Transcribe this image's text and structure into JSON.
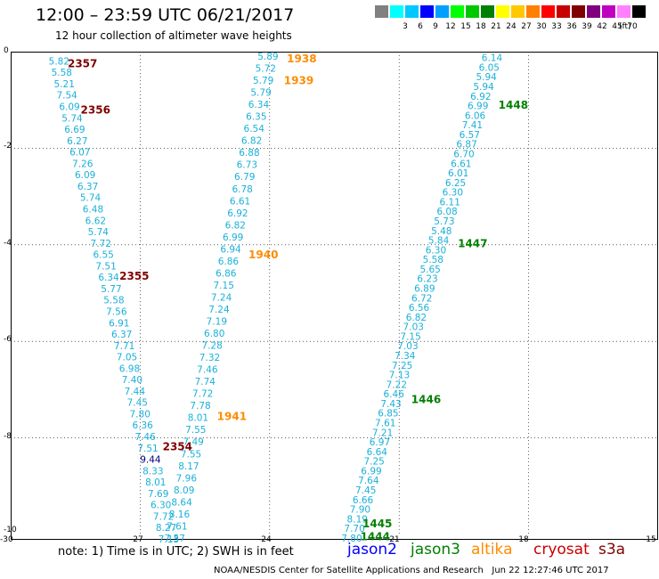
{
  "header": {
    "title": "12:00 – 23:59 UTC 06/21/2017",
    "subtitle": "12 hour collection of altimeter wave heights"
  },
  "scale": {
    "unit": "(ft)",
    "bins": [
      {
        "label": "",
        "color": "#808080"
      },
      {
        "label": "3",
        "color": "#00ffff"
      },
      {
        "label": "6",
        "color": "#00c8ff"
      },
      {
        "label": "9",
        "color": "#0000ff"
      },
      {
        "label": "12",
        "color": "#00a0ff"
      },
      {
        "label": "15",
        "color": "#00ff00"
      },
      {
        "label": "18",
        "color": "#00c800"
      },
      {
        "label": "21",
        "color": "#008000"
      },
      {
        "label": "24",
        "color": "#ffff00"
      },
      {
        "label": "27",
        "color": "#ffc800"
      },
      {
        "label": "30",
        "color": "#ff8000"
      },
      {
        "label": "33",
        "color": "#ff0000"
      },
      {
        "label": "36",
        "color": "#c80000"
      },
      {
        "label": "39",
        "color": "#800000"
      },
      {
        "label": "42",
        "color": "#800080"
      },
      {
        "label": "45",
        "color": "#c000c0"
      },
      {
        "label": "70",
        "color": "#ff80ff"
      },
      {
        "label": "",
        "color": "#000000"
      }
    ]
  },
  "axes": {
    "x_ticks": [
      "-30",
      "-27",
      "-24",
      "-21",
      "-18",
      "-15"
    ],
    "y_ticks": [
      "0",
      "-2",
      "-4",
      "-6",
      "-8",
      "-10"
    ],
    "lon_range": [
      -30,
      -15
    ],
    "lat_range": [
      -10,
      0
    ]
  },
  "note": "note: 1) Time is in UTC; 2) SWH is in feet",
  "legend": [
    {
      "label": "jason2",
      "color": "#0000ff"
    },
    {
      "label": "jason3",
      "color": "#008000"
    },
    {
      "label": "altika",
      "color": "#ff8c00"
    },
    {
      "label": "cryosat",
      "color": "#c80000"
    },
    {
      "label": "s3a",
      "color": "#800000"
    }
  ],
  "footer": "NOAA/NESDIS Center for Satellite Applications and Research   Jun 22 12:27:46 UTC 2017",
  "map_data": {
    "tracks": [
      {
        "satellite": "s3a",
        "start": [
          -29.12,
          -0.1
        ],
        "end": [
          -26.58,
          -10.0
        ],
        "values": [
          "5.82",
          "5.58",
          "5.21",
          "7.54",
          "6.09",
          "5.74",
          "6.69",
          "6.27",
          "6.07",
          "7.26",
          "6.09",
          "6.37",
          "5.74",
          "6.48",
          "6.62",
          "5.74",
          "7.72",
          "6.55",
          "7.51",
          "6.34",
          "5.77",
          "5.58",
          "7.56",
          "6.91",
          "6.37",
          "7.71",
          "7.05",
          "6.98",
          "7.40",
          "7.44",
          "7.45",
          "7.80",
          "6.36",
          "7.46",
          "7.51",
          "9.44",
          "8.33",
          "8.01",
          "7.69",
          "6.30",
          "7.72",
          "8.27",
          "7.13"
        ],
        "value_colors": {
          "35": "#000080"
        },
        "times": [
          {
            "label": "2357",
            "lon": -28.68,
            "lat": -0.12
          },
          {
            "label": "2356",
            "lon": -28.38,
            "lat": -1.08
          },
          {
            "label": "2355",
            "lon": -27.48,
            "lat": -4.52
          },
          {
            "label": "2354",
            "lon": -26.48,
            "lat": -8.05
          }
        ]
      },
      {
        "satellite": "altika",
        "start": [
          -24.28,
          0.0
        ],
        "end": [
          -26.44,
          -9.98
        ],
        "values": [
          "5.89",
          "5.72",
          "5.79",
          "5.79",
          "6.34",
          "6.35",
          "6.54",
          "6.82",
          "6.88",
          "6.73",
          "6.79",
          "6.78",
          "6.61",
          "6.92",
          "6.82",
          "6.99",
          "6.94",
          "6.86",
          "6.86",
          "7.15",
          "7.24",
          "7.24",
          "7.19",
          "6.80",
          "7.28",
          "7.32",
          "7.46",
          "7.74",
          "7.72",
          "7.78",
          "8.01",
          "7.55",
          "7.49",
          "7.55",
          "8.17",
          "7.96",
          "8.09",
          "8.64",
          "8.16",
          "7.61",
          "7.57"
        ],
        "times": [
          {
            "label": "1938",
            "lon": -23.6,
            "lat": -0.02
          },
          {
            "label": "1939",
            "lon": -23.67,
            "lat": -0.47
          },
          {
            "label": "1940",
            "lon": -24.49,
            "lat": -4.08
          },
          {
            "label": "1941",
            "lon": -25.22,
            "lat": -7.43
          }
        ]
      },
      {
        "satellite": "jason3",
        "start": [
          -19.09,
          -0.03
        ],
        "end": [
          -22.34,
          -9.98
        ],
        "values": [
          "6.14",
          "6.05",
          "5.94",
          "5.94",
          "6.92",
          "6.99",
          "6.06",
          "7.41",
          "6.57",
          "6.87",
          "6.70",
          "6.61",
          "6.01",
          "6.25",
          "6.30",
          "6.11",
          "6.08",
          "5.73",
          "5.48",
          "5.84",
          "6.30",
          "5.58",
          "5.65",
          "6.23",
          "6.89",
          "6.72",
          "6.56",
          "6.82",
          "7.03",
          "7.15",
          "7.03",
          "7.34",
          "7.25",
          "7.13",
          "7.22",
          "6.46",
          "7.43",
          "6.85",
          "7.61",
          "7.21",
          "6.97",
          "6.64",
          "7.25",
          "6.99",
          "7.64",
          "7.45",
          "6.66",
          "7.90",
          "8.19",
          "7.70",
          "7.80"
        ],
        "times": [
          {
            "label": "1448",
            "lon": -18.7,
            "lat": -0.98
          },
          {
            "label": "1447",
            "lon": -19.64,
            "lat": -3.85
          },
          {
            "label": "1446",
            "lon": -20.72,
            "lat": -7.08
          },
          {
            "label": "1445",
            "lon": -21.85,
            "lat": -9.65
          },
          {
            "label": "1444",
            "lon": -21.9,
            "lat": -9.92
          }
        ]
      }
    ]
  }
}
